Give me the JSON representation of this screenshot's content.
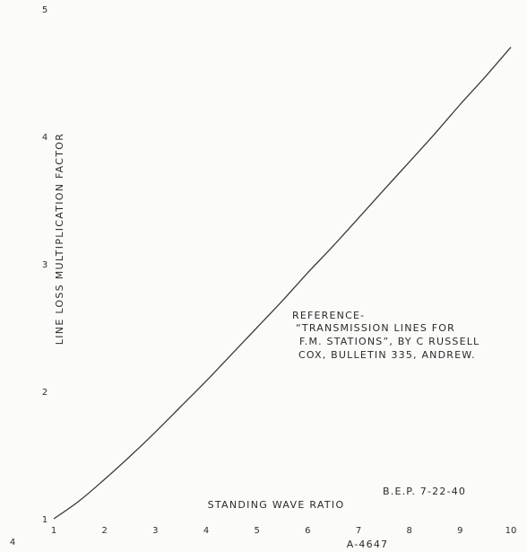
{
  "chart_data": {
    "type": "line",
    "xlabel": "STANDING WAVE RATIO",
    "ylabel": "LINE LOSS MULTIPLICATION FACTOR",
    "xlim": [
      1,
      10
    ],
    "ylim": [
      1,
      5
    ],
    "x_ticks": [
      "1",
      "2",
      "3",
      "4",
      "5",
      "6",
      "7",
      "8",
      "9",
      "10"
    ],
    "y_ticks": [
      "1",
      "2",
      "3",
      "4",
      "5"
    ],
    "extra_tick": "4",
    "series": [
      {
        "x": [
          1,
          1.5,
          2,
          2.5,
          3,
          3.5,
          4,
          4.5,
          5,
          5.5,
          6,
          6.5,
          7,
          7.5,
          8,
          8.5,
          9,
          9.5,
          10
        ],
        "y": [
          1,
          1.14,
          1.31,
          1.49,
          1.68,
          1.88,
          2.08,
          2.29,
          2.5,
          2.71,
          2.93,
          3.14,
          3.36,
          3.58,
          3.8,
          4.02,
          4.25,
          4.47,
          4.7
        ]
      }
    ],
    "reference_lines": [
      "REFERENCE-",
      "“TRANSMISSION LINES FOR",
      "F.M. STATIONS”, BY C RUSSELL",
      "COX, BULLETIN 335, ANDREW."
    ],
    "initials_date": "B.E.P. 7-22-40",
    "figure_number": "A-4647",
    "grid": false,
    "colors": {
      "line": "#3a3a3a",
      "text": "#2a2a2a",
      "background": "#fbfbf9"
    }
  }
}
